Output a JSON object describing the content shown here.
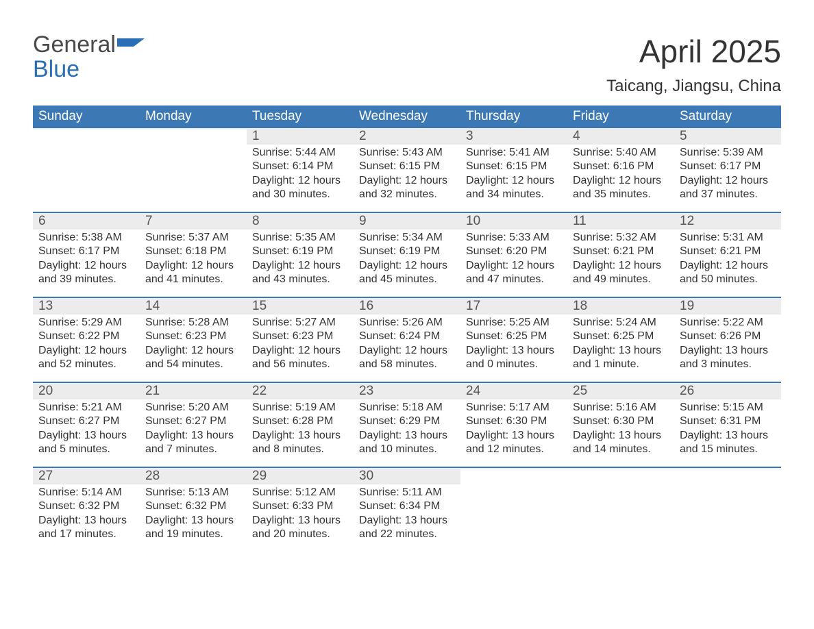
{
  "logo": {
    "text1": "General",
    "text2": "Blue"
  },
  "header": {
    "month_title": "April 2025",
    "location": "Taicang, Jiangsu, China"
  },
  "style": {
    "header_bg": "#3c78b4",
    "header_text": "#ffffff",
    "daynum_bg": "#ececec",
    "week_border": "#3c78b4",
    "body_text": "#333333",
    "logo_gray": "#4a4a4a",
    "logo_blue": "#2a6fb3",
    "page_bg": "#ffffff",
    "title_fontsize": 46,
    "loc_fontsize": 24,
    "dow_fontsize": 19,
    "body_fontsize": 16
  },
  "dow": [
    "Sunday",
    "Monday",
    "Tuesday",
    "Wednesday",
    "Thursday",
    "Friday",
    "Saturday"
  ],
  "labels": {
    "sunrise": "Sunrise: ",
    "sunset": "Sunset: ",
    "daylight": "Daylight: "
  },
  "weeks": [
    [
      null,
      null,
      {
        "n": 1,
        "sr": "5:44 AM",
        "ss": "6:14 PM",
        "dl": "12 hours and 30 minutes."
      },
      {
        "n": 2,
        "sr": "5:43 AM",
        "ss": "6:15 PM",
        "dl": "12 hours and 32 minutes."
      },
      {
        "n": 3,
        "sr": "5:41 AM",
        "ss": "6:15 PM",
        "dl": "12 hours and 34 minutes."
      },
      {
        "n": 4,
        "sr": "5:40 AM",
        "ss": "6:16 PM",
        "dl": "12 hours and 35 minutes."
      },
      {
        "n": 5,
        "sr": "5:39 AM",
        "ss": "6:17 PM",
        "dl": "12 hours and 37 minutes."
      }
    ],
    [
      {
        "n": 6,
        "sr": "5:38 AM",
        "ss": "6:17 PM",
        "dl": "12 hours and 39 minutes."
      },
      {
        "n": 7,
        "sr": "5:37 AM",
        "ss": "6:18 PM",
        "dl": "12 hours and 41 minutes."
      },
      {
        "n": 8,
        "sr": "5:35 AM",
        "ss": "6:19 PM",
        "dl": "12 hours and 43 minutes."
      },
      {
        "n": 9,
        "sr": "5:34 AM",
        "ss": "6:19 PM",
        "dl": "12 hours and 45 minutes."
      },
      {
        "n": 10,
        "sr": "5:33 AM",
        "ss": "6:20 PM",
        "dl": "12 hours and 47 minutes."
      },
      {
        "n": 11,
        "sr": "5:32 AM",
        "ss": "6:21 PM",
        "dl": "12 hours and 49 minutes."
      },
      {
        "n": 12,
        "sr": "5:31 AM",
        "ss": "6:21 PM",
        "dl": "12 hours and 50 minutes."
      }
    ],
    [
      {
        "n": 13,
        "sr": "5:29 AM",
        "ss": "6:22 PM",
        "dl": "12 hours and 52 minutes."
      },
      {
        "n": 14,
        "sr": "5:28 AM",
        "ss": "6:23 PM",
        "dl": "12 hours and 54 minutes."
      },
      {
        "n": 15,
        "sr": "5:27 AM",
        "ss": "6:23 PM",
        "dl": "12 hours and 56 minutes."
      },
      {
        "n": 16,
        "sr": "5:26 AM",
        "ss": "6:24 PM",
        "dl": "12 hours and 58 minutes."
      },
      {
        "n": 17,
        "sr": "5:25 AM",
        "ss": "6:25 PM",
        "dl": "13 hours and 0 minutes."
      },
      {
        "n": 18,
        "sr": "5:24 AM",
        "ss": "6:25 PM",
        "dl": "13 hours and 1 minute."
      },
      {
        "n": 19,
        "sr": "5:22 AM",
        "ss": "6:26 PM",
        "dl": "13 hours and 3 minutes."
      }
    ],
    [
      {
        "n": 20,
        "sr": "5:21 AM",
        "ss": "6:27 PM",
        "dl": "13 hours and 5 minutes."
      },
      {
        "n": 21,
        "sr": "5:20 AM",
        "ss": "6:27 PM",
        "dl": "13 hours and 7 minutes."
      },
      {
        "n": 22,
        "sr": "5:19 AM",
        "ss": "6:28 PM",
        "dl": "13 hours and 8 minutes."
      },
      {
        "n": 23,
        "sr": "5:18 AM",
        "ss": "6:29 PM",
        "dl": "13 hours and 10 minutes."
      },
      {
        "n": 24,
        "sr": "5:17 AM",
        "ss": "6:30 PM",
        "dl": "13 hours and 12 minutes."
      },
      {
        "n": 25,
        "sr": "5:16 AM",
        "ss": "6:30 PM",
        "dl": "13 hours and 14 minutes."
      },
      {
        "n": 26,
        "sr": "5:15 AM",
        "ss": "6:31 PM",
        "dl": "13 hours and 15 minutes."
      }
    ],
    [
      {
        "n": 27,
        "sr": "5:14 AM",
        "ss": "6:32 PM",
        "dl": "13 hours and 17 minutes."
      },
      {
        "n": 28,
        "sr": "5:13 AM",
        "ss": "6:32 PM",
        "dl": "13 hours and 19 minutes."
      },
      {
        "n": 29,
        "sr": "5:12 AM",
        "ss": "6:33 PM",
        "dl": "13 hours and 20 minutes."
      },
      {
        "n": 30,
        "sr": "5:11 AM",
        "ss": "6:34 PM",
        "dl": "13 hours and 22 minutes."
      },
      null,
      null,
      null
    ]
  ]
}
